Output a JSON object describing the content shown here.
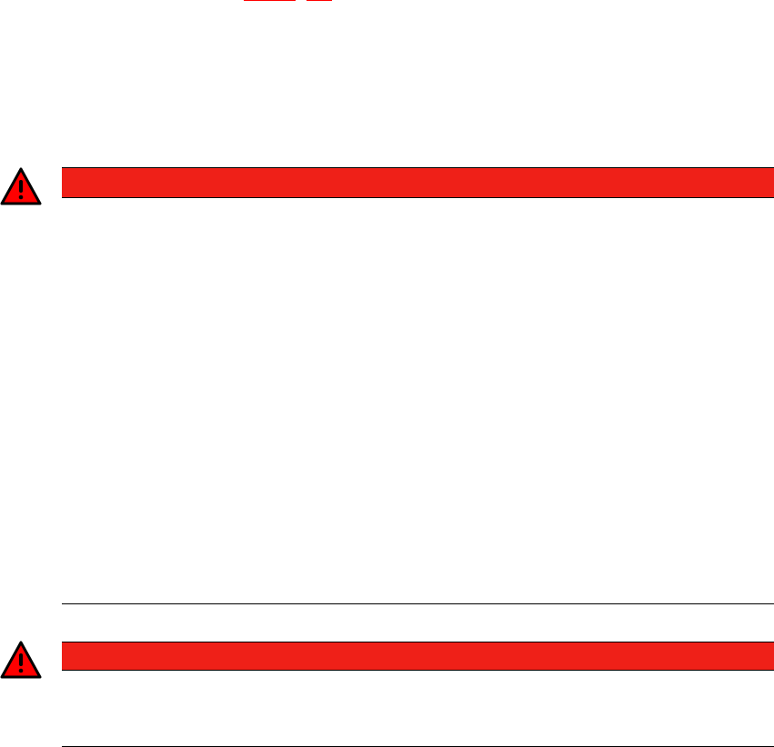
{
  "warnings": [
    {
      "icon": "warning-triangle-icon",
      "label": ""
    },
    {
      "icon": "warning-triangle-icon",
      "label": ""
    }
  ],
  "colors": {
    "warning_bar": "#ef2018",
    "warning_icon": "#ff0000",
    "link": "#ff0000"
  }
}
